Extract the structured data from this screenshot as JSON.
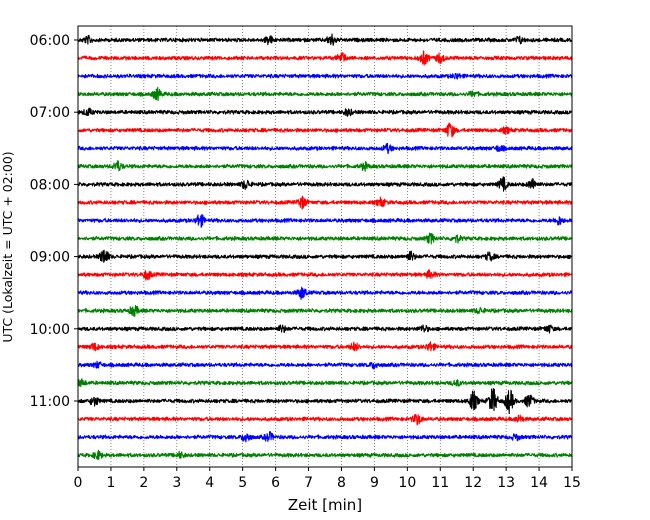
{
  "chart_data": {
    "type": "line",
    "title": "",
    "xlabel": "Zeit  [min]",
    "ylabel": "UTC (Lokalzeit = UTC + 02:00)",
    "xlim": [
      0,
      15
    ],
    "x_ticks": [
      "0",
      "1",
      "2",
      "3",
      "4",
      "5",
      "6",
      "7",
      "8",
      "9",
      "10",
      "11",
      "12",
      "13",
      "14",
      "15"
    ],
    "y_tick_labels": [
      "06:00",
      "07:00",
      "08:00",
      "09:00",
      "10:00",
      "11:00"
    ],
    "grid": "vertical dotted",
    "line_colors": [
      "#000000",
      "#ff0000",
      "#0000ff",
      "#008000"
    ],
    "traces": [
      {
        "start": "06:00",
        "color": "#000000",
        "events": [
          [
            0.3,
            0.5
          ],
          [
            5.8,
            0.6
          ],
          [
            7.7,
            0.9
          ],
          [
            13.4,
            0.5
          ]
        ]
      },
      {
        "start": "06:15",
        "color": "#ff0000",
        "events": [
          [
            8.0,
            0.8
          ],
          [
            10.5,
            1.0
          ],
          [
            11.0,
            0.7
          ]
        ]
      },
      {
        "start": "06:30",
        "color": "#0000ff",
        "events": [
          [
            11.5,
            0.4
          ]
        ]
      },
      {
        "start": "06:45",
        "color": "#008000",
        "events": [
          [
            2.4,
            0.9
          ],
          [
            12.0,
            0.4
          ]
        ]
      },
      {
        "start": "07:00",
        "color": "#000000",
        "events": [
          [
            0.3,
            0.5
          ],
          [
            8.2,
            0.5
          ]
        ]
      },
      {
        "start": "07:15",
        "color": "#ff0000",
        "events": [
          [
            11.3,
            1.2
          ],
          [
            13.0,
            0.4
          ]
        ]
      },
      {
        "start": "07:30",
        "color": "#0000ff",
        "events": [
          [
            9.4,
            0.6
          ],
          [
            12.8,
            0.4
          ]
        ]
      },
      {
        "start": "07:45",
        "color": "#008000",
        "events": [
          [
            1.2,
            0.8
          ],
          [
            8.7,
            0.5
          ]
        ]
      },
      {
        "start": "08:00",
        "color": "#000000",
        "events": [
          [
            5.1,
            0.7
          ],
          [
            12.9,
            1.0
          ],
          [
            13.8,
            0.8
          ]
        ]
      },
      {
        "start": "08:15",
        "color": "#ff0000",
        "events": [
          [
            6.8,
            0.9
          ],
          [
            9.2,
            0.6
          ]
        ]
      },
      {
        "start": "08:30",
        "color": "#0000ff",
        "events": [
          [
            3.7,
            1.0
          ],
          [
            14.6,
            0.6
          ]
        ]
      },
      {
        "start": "08:45",
        "color": "#008000",
        "events": [
          [
            10.7,
            0.7
          ],
          [
            11.5,
            0.5
          ]
        ]
      },
      {
        "start": "09:00",
        "color": "#000000",
        "events": [
          [
            0.8,
            1.2
          ],
          [
            10.1,
            0.7
          ],
          [
            12.5,
            0.6
          ]
        ]
      },
      {
        "start": "09:15",
        "color": "#ff0000",
        "events": [
          [
            2.1,
            0.7
          ],
          [
            10.7,
            0.6
          ]
        ]
      },
      {
        "start": "09:30",
        "color": "#0000ff",
        "events": [
          [
            6.8,
            0.9
          ]
        ]
      },
      {
        "start": "09:45",
        "color": "#008000",
        "events": [
          [
            1.7,
            0.8
          ],
          [
            12.2,
            0.4
          ]
        ]
      },
      {
        "start": "10:00",
        "color": "#000000",
        "events": [
          [
            6.2,
            0.5
          ],
          [
            10.5,
            0.5
          ],
          [
            14.3,
            0.5
          ]
        ]
      },
      {
        "start": "10:15",
        "color": "#ff0000",
        "events": [
          [
            0.5,
            0.5
          ],
          [
            8.4,
            0.6
          ],
          [
            10.7,
            0.7
          ]
        ]
      },
      {
        "start": "10:30",
        "color": "#0000ff",
        "events": [
          [
            0.6,
            0.4
          ],
          [
            9.0,
            0.5
          ]
        ]
      },
      {
        "start": "10:45",
        "color": "#008000",
        "events": [
          [
            0.1,
            0.5
          ],
          [
            11.5,
            0.4
          ]
        ]
      },
      {
        "start": "11:00",
        "color": "#000000",
        "events": [
          [
            0.5,
            0.7
          ],
          [
            12.0,
            1.5
          ],
          [
            12.6,
            2.0
          ],
          [
            13.1,
            1.8
          ],
          [
            13.7,
            1.0
          ]
        ]
      },
      {
        "start": "11:15",
        "color": "#ff0000",
        "events": [
          [
            10.3,
            0.8
          ],
          [
            13.4,
            0.5
          ]
        ]
      },
      {
        "start": "11:30",
        "color": "#0000ff",
        "events": [
          [
            5.1,
            0.8
          ],
          [
            5.8,
            0.7
          ],
          [
            13.3,
            0.4
          ]
        ]
      },
      {
        "start": "11:45",
        "color": "#008000",
        "events": [
          [
            0.6,
            0.6
          ],
          [
            3.1,
            0.4
          ]
        ]
      }
    ]
  }
}
